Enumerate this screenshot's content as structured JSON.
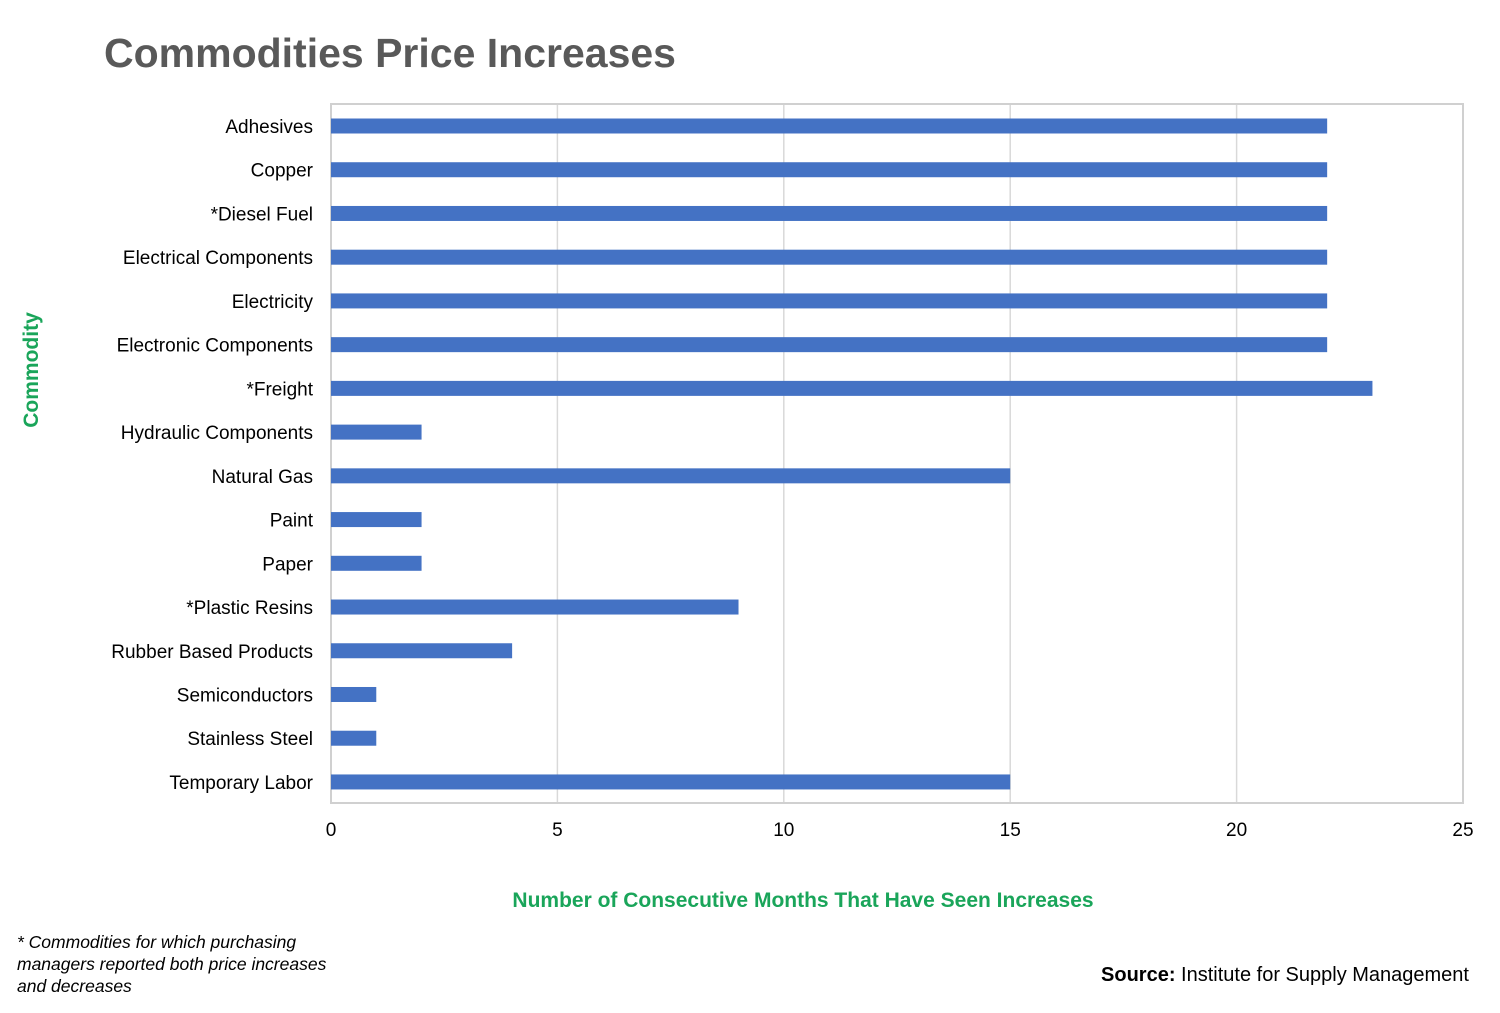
{
  "chart_data": {
    "type": "bar",
    "orientation": "horizontal",
    "title": "Commodities Price Increases",
    "xlabel": "Number of Consecutive Months That Have Seen Increases",
    "ylabel": "Commodity",
    "xlim": [
      0,
      25
    ],
    "xticks": [
      0,
      5,
      10,
      15,
      20,
      25
    ],
    "grid": true,
    "categories": [
      "Adhesives",
      "Copper",
      "*Diesel Fuel",
      "Electrical Components",
      "Electricity",
      "Electronic Components",
      "*Freight",
      "Hydraulic Components",
      "Natural Gas",
      "Paint",
      "Paper",
      "*Plastic Resins",
      "Rubber Based Products",
      "Semiconductors",
      "Stainless Steel",
      "Temporary Labor"
    ],
    "values": [
      22,
      22,
      22,
      22,
      22,
      22,
      23,
      2,
      15,
      2,
      2,
      9,
      4,
      1,
      1,
      15
    ],
    "bar_color": "#4472C4",
    "axis_title_color": "#1AA55A"
  },
  "footnote": "* Commodities for which purchasing managers reported both price increases and decreases",
  "source": {
    "label": "Source:",
    "text": "Institute for Supply Management"
  }
}
